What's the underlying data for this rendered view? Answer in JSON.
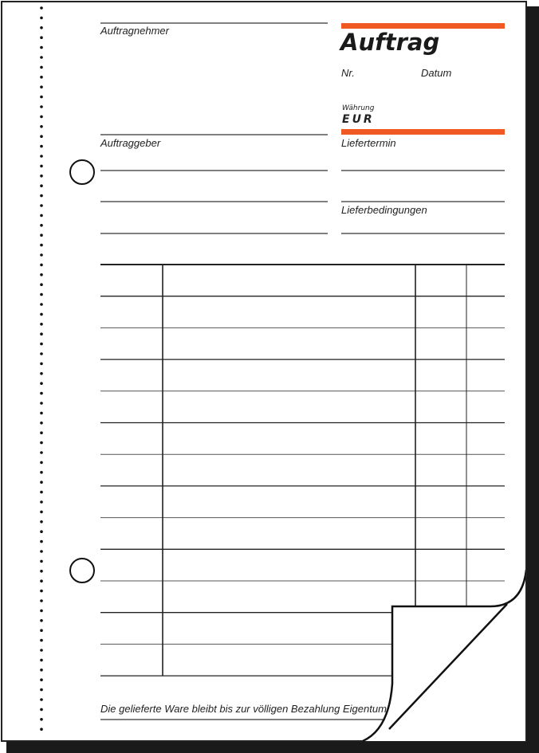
{
  "form": {
    "title": "Auftrag",
    "contractor_label": "Auftragnehmer",
    "client_label": "Auftraggeber",
    "number_label": "Nr.",
    "date_label": "Datum",
    "currency_label": "Währung",
    "currency_value": "EUR",
    "delivery_date_label": "Liefertermin",
    "delivery_terms_label": "Lieferbedingungen",
    "footer_note": "Die gelieferte Ware bleibt bis zur völligen Bezahlung Eigentum"
  },
  "colors": {
    "accent": "#f05a22",
    "ink": "#222222",
    "shadow": "#1a1a1a"
  }
}
